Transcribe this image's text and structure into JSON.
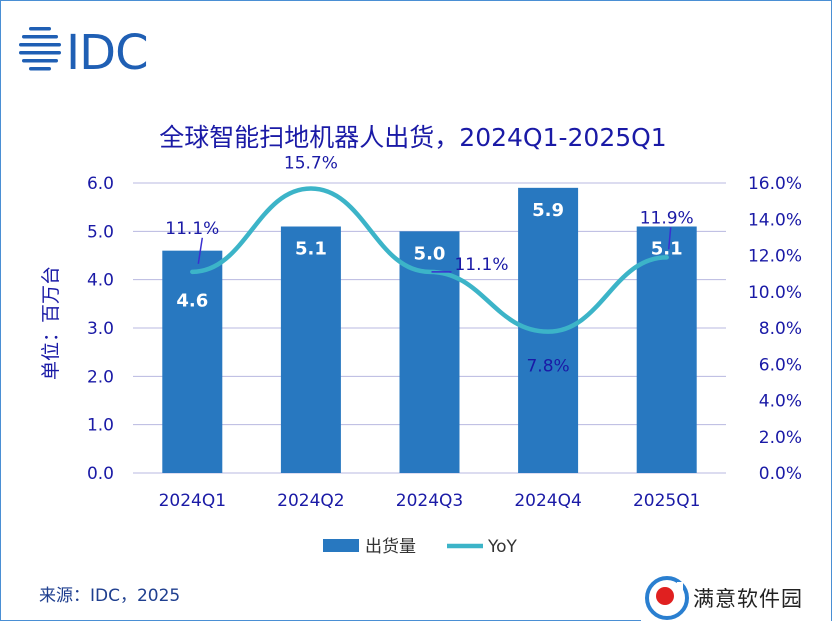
{
  "header": {
    "logo_text": "IDC"
  },
  "chart_data": {
    "type": "bar",
    "title": "全球智能扫地机器人出货，2024Q1-2025Q1",
    "ylabel": "单位：百万台",
    "categories": [
      "2024Q1",
      "2024Q2",
      "2024Q3",
      "2024Q4",
      "2025Q1"
    ],
    "series": [
      {
        "name": "出货量",
        "type": "bar",
        "axis": "left",
        "values": [
          4.6,
          5.1,
          5.0,
          5.9,
          5.1
        ],
        "labels": [
          "4.6",
          "5.1",
          "5.0",
          "5.9",
          "5.1"
        ]
      },
      {
        "name": "YoY",
        "type": "line",
        "axis": "right",
        "values": [
          11.1,
          15.7,
          11.1,
          7.8,
          11.9
        ],
        "labels": [
          "11.1%",
          "15.7%",
          "11.1%",
          "7.8%",
          "11.9%"
        ]
      }
    ],
    "ylim_left": [
      0,
      6
    ],
    "yticks_left": [
      "0.0",
      "1.0",
      "2.0",
      "3.0",
      "4.0",
      "5.0",
      "6.0"
    ],
    "ylim_right": [
      0,
      16
    ],
    "yticks_right": [
      "0.0%",
      "2.0%",
      "4.0%",
      "6.0%",
      "8.0%",
      "10.0%",
      "12.0%",
      "14.0%",
      "16.0%"
    ],
    "grid": true,
    "legend_position": "bottom",
    "colors": {
      "bar": "#2878c0",
      "line": "#3cb4c8",
      "text": "#1a1aa6",
      "grid": "#b8b8e0"
    }
  },
  "footer": {
    "source": "来源：IDC，2025"
  },
  "watermark": {
    "text": "满意软件园"
  }
}
